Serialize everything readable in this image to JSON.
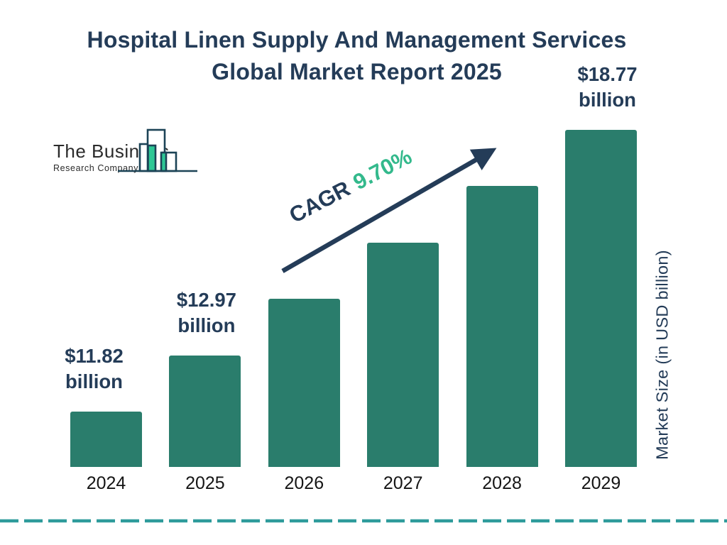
{
  "title": {
    "line1": "Hospital Linen Supply And Management Services",
    "line2": "Global Market Report 2025"
  },
  "logo": {
    "name_line1": "The Business",
    "name_line2": "Research Company"
  },
  "cagr": {
    "prefix": "CAGR",
    "value": "9.70%"
  },
  "y_axis_label": "Market Size (in USD billion)",
  "chart_data": {
    "type": "bar",
    "title": "Hospital Linen Supply And Management Services Global Market Report 2025",
    "categories": [
      "2024",
      "2025",
      "2026",
      "2027",
      "2028",
      "2029"
    ],
    "values": [
      11.82,
      12.97,
      14.23,
      15.61,
      17.12,
      18.77
    ],
    "value_labels": [
      {
        "amount": "$11.82",
        "unit": "billion"
      },
      {
        "amount": "$12.97",
        "unit": "billion"
      },
      null,
      null,
      null,
      {
        "amount": "$18.77",
        "unit": "billion"
      }
    ],
    "cagr": "9.70%",
    "xlabel": "",
    "ylabel": "Market Size (in USD billion)",
    "legend_position": "none",
    "grid": false,
    "bar_color": "#2A7D6C"
  },
  "colors": {
    "navy": "#243C58",
    "bar_teal": "#2A7D6C",
    "accent_green": "#33B98C",
    "dashed_line_teal": "#2E9B9B",
    "logo_outline": "#1C4356",
    "logo_fill_green": "#2DC795",
    "year_label": "#151515"
  }
}
